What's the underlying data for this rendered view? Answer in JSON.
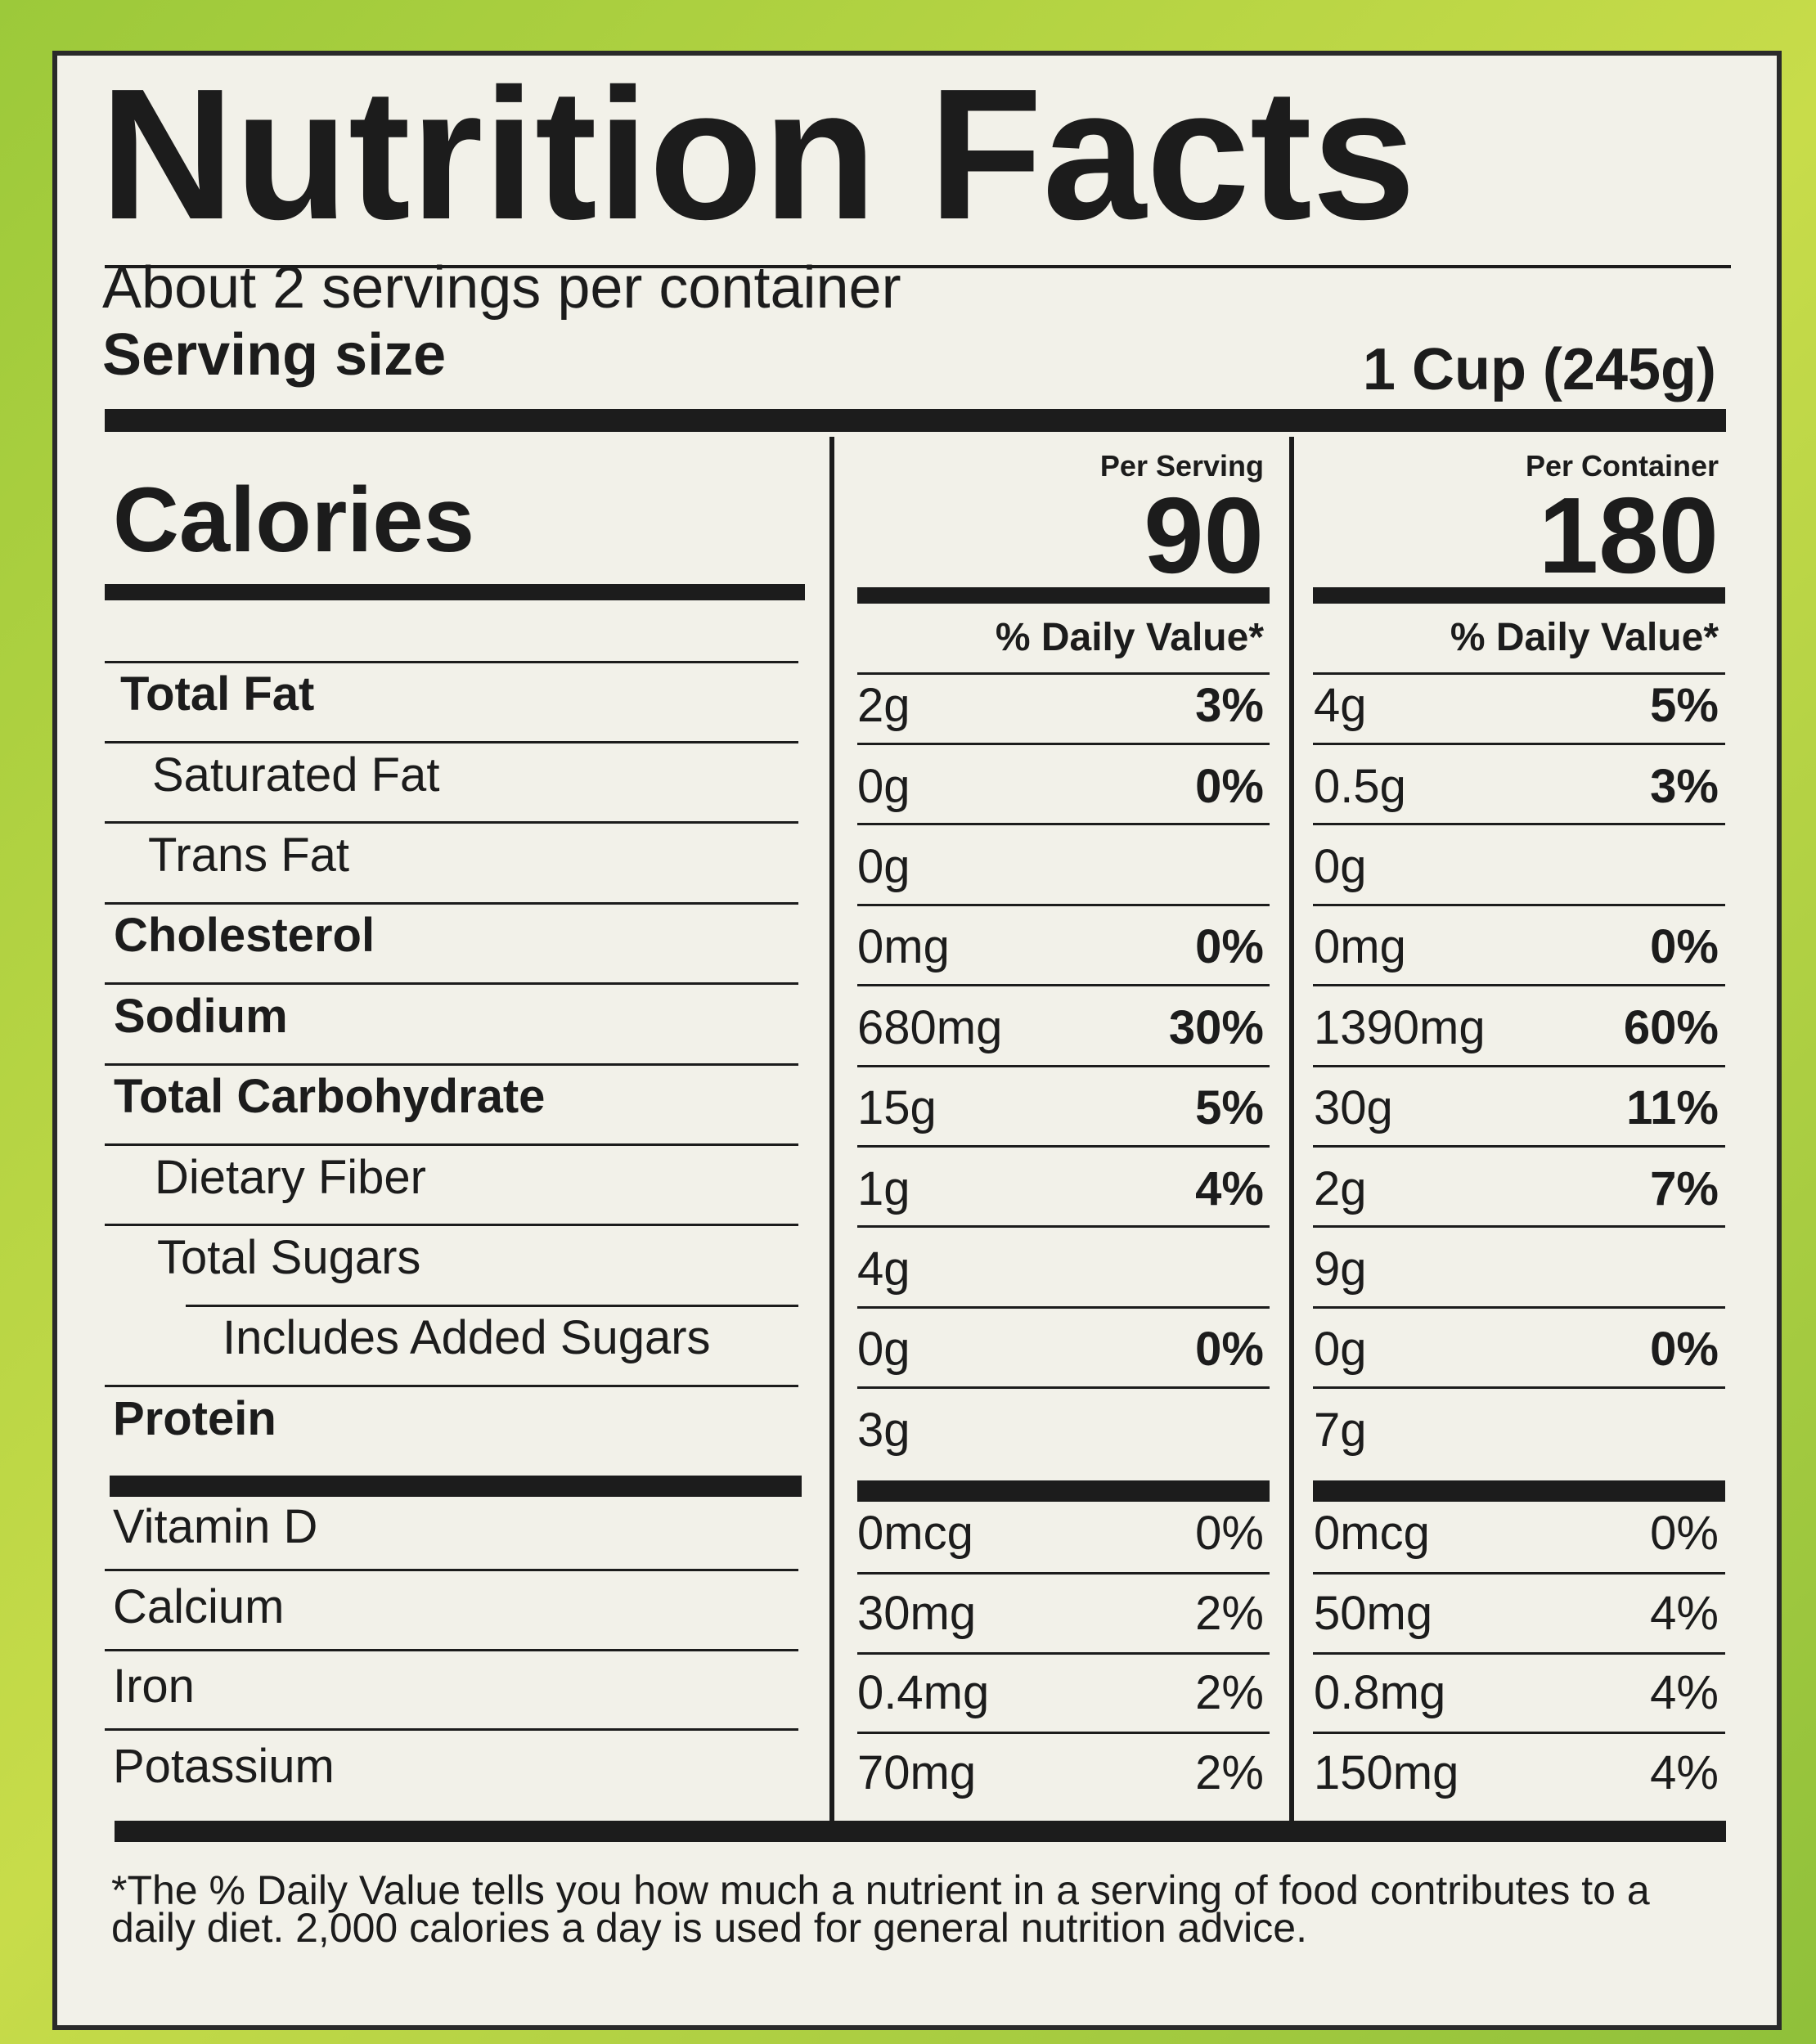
{
  "title": "Nutrition Facts",
  "servings": "About 2 servings per container",
  "serving_size_label": "Serving size",
  "serving_size": "1 Cup (245g)",
  "calories_label": "Calories",
  "columns": [
    {
      "header": "Per Serving",
      "calories": "90",
      "dv_header": "% Daily Value*"
    },
    {
      "header": "Per Container",
      "calories": "180",
      "dv_header": "% Daily Value*"
    }
  ],
  "rows": [
    {
      "name": "Total Fat",
      "values": [
        [
          "2g",
          "3%"
        ],
        [
          "4g",
          "5%"
        ]
      ]
    },
    {
      "name": "Saturated Fat",
      "values": [
        [
          "0g",
          "0%"
        ],
        [
          "0.5g",
          "3%"
        ]
      ]
    },
    {
      "name": "Trans Fat",
      "values": [
        [
          "0g"
        ],
        [
          "0g"
        ]
      ]
    },
    {
      "name": "Cholesterol",
      "values": [
        [
          "0mg",
          "0%"
        ],
        [
          "0mg",
          "0%"
        ]
      ]
    },
    {
      "name": "Sodium",
      "values": [
        [
          "680mg",
          "30%"
        ],
        [
          "1390mg",
          "60%"
        ]
      ]
    },
    {
      "name": "Total Carbohydrate",
      "values": [
        [
          "15g",
          "5%"
        ],
        [
          "30g",
          "11%"
        ]
      ]
    },
    {
      "name": "Dietary Fiber",
      "values": [
        [
          "1g",
          "4%"
        ],
        [
          "2g",
          "7%"
        ]
      ]
    },
    {
      "name": "Total Sugars",
      "values": [
        [
          "4g"
        ],
        [
          "9g"
        ]
      ]
    },
    {
      "name": "Includes Added Sugars",
      "values": [
        [
          "0g",
          "0%"
        ],
        [
          "0g",
          "0%"
        ]
      ]
    },
    {
      "name": "Protein",
      "values": [
        [
          "3g"
        ],
        [
          "7g"
        ]
      ]
    }
  ],
  "vitamins": [
    {
      "name": "Vitamin D",
      "values": [
        [
          "0mcg",
          "0%"
        ],
        [
          "0mcg",
          "0%"
        ]
      ]
    },
    {
      "name": "Calcium",
      "values": [
        [
          "30mg",
          "2%"
        ],
        [
          "50mg",
          "4%"
        ]
      ]
    },
    {
      "name": "Iron",
      "values": [
        [
          "0.4mg",
          "2%"
        ],
        [
          "0.8mg",
          "4%"
        ]
      ]
    },
    {
      "name": "Potassium",
      "values": [
        [
          "70mg",
          "2%"
        ],
        [
          "150mg",
          "4%"
        ]
      ]
    }
  ],
  "footnote": "*The % Daily Value tells you how much a nutrient in a serving of food contributes to a daily diet. 2,000 calories a day is used for general nutrition advice."
}
